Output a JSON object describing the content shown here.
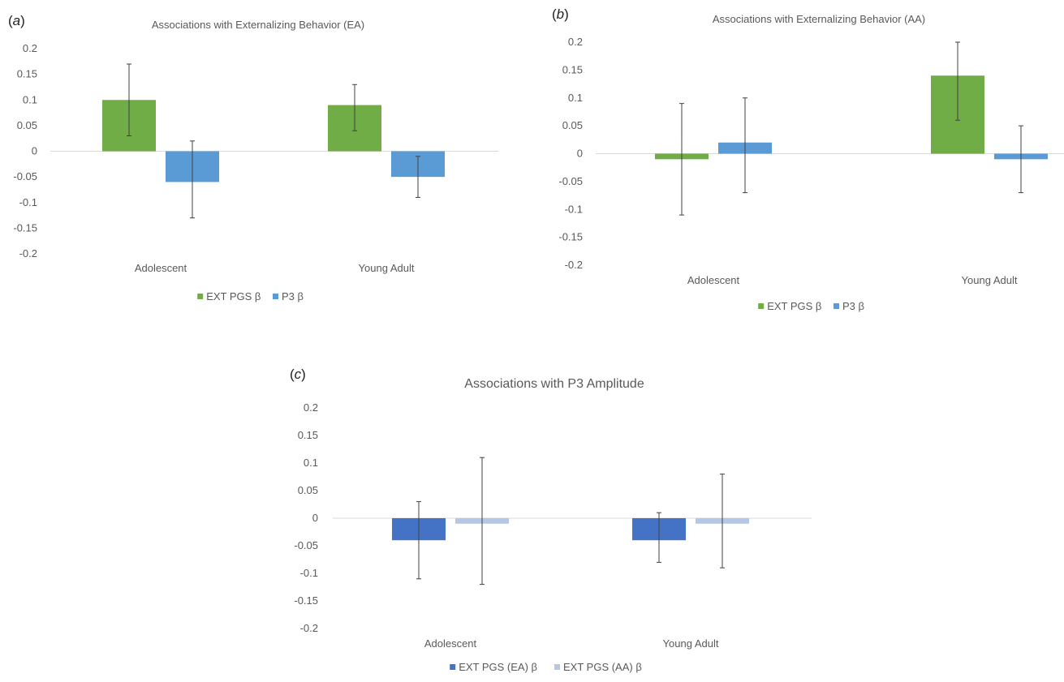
{
  "chart_data": [
    {
      "panel_label": "a",
      "type": "bar",
      "title": "Associations with Externalizing Behavior (EA)",
      "categories": [
        "Adolescent",
        "Young Adult"
      ],
      "ylim": [
        -0.2,
        0.2
      ],
      "yticks": [
        "0.2",
        "0.15",
        "0.1",
        "0.05",
        "0",
        "-0.05",
        "-0.1",
        "-0.15",
        "-0.2"
      ],
      "legend_position": "bottom",
      "series": [
        {
          "name": "EXT PGS β",
          "color": "#70ad47",
          "values": [
            0.1,
            0.09
          ],
          "err_low": [
            0.03,
            0.04
          ],
          "err_high": [
            0.17,
            0.13
          ]
        },
        {
          "name": "P3 β",
          "color": "#5b9bd5",
          "values": [
            -0.06,
            -0.05
          ],
          "err_low": [
            -0.13,
            -0.09
          ],
          "err_high": [
            0.02,
            -0.01
          ]
        }
      ]
    },
    {
      "panel_label": "b",
      "type": "bar",
      "title": "Associations with Externalizing Behavior (AA)",
      "categories": [
        "Adolescent",
        "Young Adult"
      ],
      "ylim": [
        -0.2,
        0.2
      ],
      "yticks": [
        "0.2",
        "0.15",
        "0.1",
        "0.05",
        "0",
        "-0.05",
        "-0.1",
        "-0.15",
        "-0.2"
      ],
      "legend_position": "bottom",
      "series": [
        {
          "name": "EXT PGS β",
          "color": "#70ad47",
          "values": [
            -0.01,
            0.14
          ],
          "err_low": [
            -0.11,
            0.06
          ],
          "err_high": [
            0.09,
            0.2
          ]
        },
        {
          "name": "P3 β",
          "color": "#5b9bd5",
          "values": [
            0.02,
            -0.01
          ],
          "err_low": [
            -0.07,
            -0.07
          ],
          "err_high": [
            0.1,
            0.05
          ]
        }
      ]
    },
    {
      "panel_label": "c",
      "type": "bar",
      "title": "Associations with P3 Amplitude",
      "categories": [
        "Adolescent",
        "Young Adult"
      ],
      "ylim": [
        -0.2,
        0.2
      ],
      "yticks": [
        "0.2",
        "0.15",
        "0.1",
        "0.05",
        "0",
        "-0.05",
        "-0.1",
        "-0.15",
        "-0.2"
      ],
      "legend_position": "bottom",
      "series": [
        {
          "name": "EXT PGS (EA) β",
          "color": "#4472c4",
          "values": [
            -0.04,
            -0.04
          ],
          "err_low": [
            -0.11,
            -0.08
          ],
          "err_high": [
            0.03,
            0.01
          ]
        },
        {
          "name": "EXT PGS (AA) β",
          "color": "#b4c7e7",
          "values": [
            -0.01,
            -0.01
          ],
          "err_low": [
            -0.12,
            -0.09
          ],
          "err_high": [
            0.11,
            0.08
          ]
        }
      ]
    }
  ]
}
